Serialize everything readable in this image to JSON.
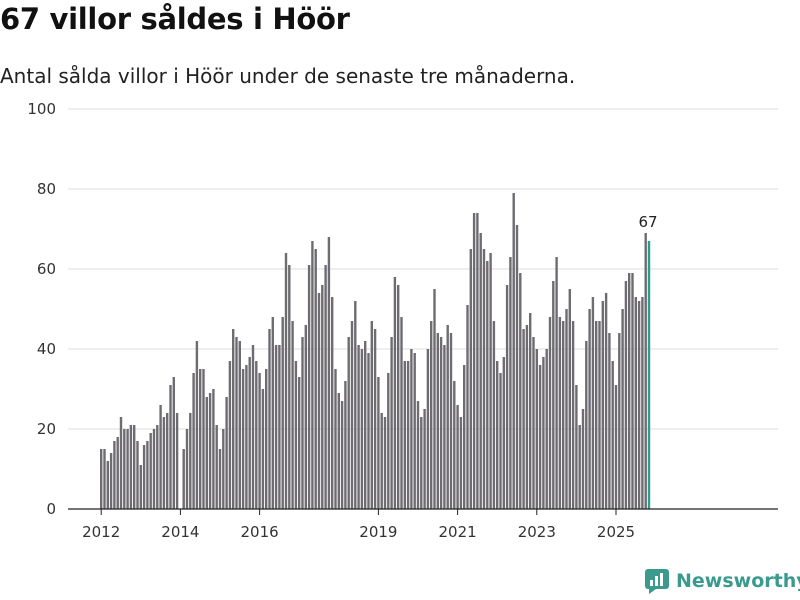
{
  "header": {
    "title": "67 villor såldes i Höör",
    "subtitle": "Antal sålda villor i Höör under de senaste tre månaderna."
  },
  "brand": {
    "name": "Newsworthy"
  },
  "colors": {
    "bar": "#6e6c71",
    "highlight": "#2a9d8f",
    "grid": "#dddddd",
    "brand": "#3a9a8e"
  },
  "chart_data": {
    "type": "bar",
    "title": "67 villor såldes i Höör",
    "subtitle": "Antal sålda villor i Höör under de senaste tre månaderna.",
    "xlabel": "",
    "ylabel": "",
    "ylim": [
      0,
      100
    ],
    "y_ticks": [
      0,
      20,
      40,
      60,
      80,
      100
    ],
    "x_start": 2012.0,
    "x_step": 0.083333,
    "x_tick_labels": [
      2012,
      2014,
      2016,
      2019,
      2021,
      2023,
      2025
    ],
    "grid": true,
    "highlight_label": "67",
    "values": [
      15,
      15,
      12,
      14,
      17,
      18,
      23,
      20,
      20,
      21,
      21,
      17,
      11,
      16,
      17,
      19,
      20,
      21,
      26,
      23,
      24,
      31,
      33,
      24,
      0,
      15,
      20,
      24,
      34,
      42,
      35,
      35,
      28,
      29,
      30,
      21,
      15,
      20,
      28,
      37,
      45,
      43,
      42,
      35,
      36,
      38,
      41,
      37,
      34,
      30,
      35,
      45,
      48,
      41,
      41,
      48,
      64,
      61,
      47,
      37,
      33,
      43,
      46,
      61,
      67,
      65,
      54,
      56,
      61,
      68,
      53,
      35,
      29,
      27,
      32,
      43,
      47,
      52,
      41,
      40,
      42,
      39,
      47,
      45,
      33,
      24,
      23,
      34,
      43,
      58,
      56,
      48,
      37,
      37,
      40,
      39,
      27,
      23,
      25,
      40,
      47,
      55,
      44,
      43,
      41,
      46,
      44,
      32,
      26,
      23,
      36,
      51,
      65,
      74,
      74,
      69,
      65,
      62,
      64,
      47,
      37,
      34,
      38,
      56,
      63,
      79,
      71,
      59,
      45,
      46,
      49,
      43,
      40,
      36,
      38,
      40,
      48,
      57,
      63,
      48,
      47,
      50,
      55,
      47,
      31,
      21,
      25,
      42,
      50,
      53,
      47,
      47,
      52,
      54,
      44,
      37,
      31,
      44,
      50,
      57,
      59,
      59,
      53,
      52,
      53,
      69,
      67
    ]
  }
}
